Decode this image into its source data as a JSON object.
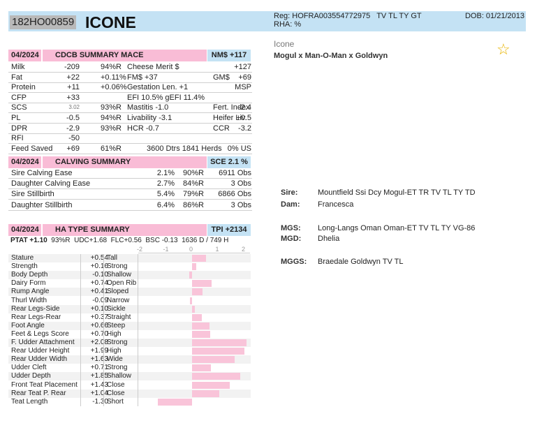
{
  "header": {
    "reg_id": "182HO00859",
    "name": "ICONE",
    "reg": "Reg: HOFRA003554772975",
    "tags": "TV TL TY GT",
    "rha": "RHA: %",
    "dob": "DOB: 01/21/2013"
  },
  "info": {
    "short_name": "Icone",
    "pedigree_line": "Mogul x Man-O-Man x Goldwyn"
  },
  "pedigree": [
    {
      "label": "Sire:",
      "value": "Mountfield Ssi Dcy Mogul-ET TR TV TL TY TD"
    },
    {
      "label": "Dam:",
      "value": "Francesca"
    },
    {
      "label": "MGS:",
      "value": "Long-Langs Oman Oman-ET TV TL TY VG-86"
    },
    {
      "label": "MGD:",
      "value": "Dhelia"
    },
    {
      "label": "MGGS:",
      "value": "Braedale Goldwyn TV TL"
    }
  ],
  "mace": {
    "date": "04/2024",
    "title": "CDCB SUMMARY MACE",
    "index": "NM$ +117",
    "rows": [
      [
        "Milk",
        "-209",
        "94%R",
        "Cheese Merit $",
        "",
        "+127"
      ],
      [
        "Fat",
        "+22",
        "+0.11%",
        "FM$ +37",
        "GM$",
        "+69"
      ],
      [
        "Protein",
        "+11",
        "+0.06%",
        "Gestation Len. +1",
        "",
        "MSP"
      ],
      [
        "CFP",
        "+33",
        "",
        "EFI  10.5%  gEFI  11.4%",
        "",
        ""
      ],
      [
        "SCS",
        "3.02",
        "93%R",
        "Mastitis  -1.0",
        "Fert. Index",
        "-2.4"
      ],
      [
        "PL",
        "-0.5",
        "94%R",
        "Livability  -3.1",
        "Heifer Liv.",
        "+0.5"
      ],
      [
        "DPR",
        "-2.9",
        "93%R",
        "HCR  -0.7",
        "CCR",
        "-3.2"
      ],
      [
        "RFI",
        "-50",
        "",
        "",
        "",
        ""
      ],
      [
        "Feed Saved",
        "+69",
        "61%R",
        "3600 Dtrs  1841 Herds",
        "",
        "0% US"
      ]
    ]
  },
  "calving": {
    "date": "04/2024",
    "title": "CALVING SUMMARY",
    "index": "SCE 2.1 %",
    "rows": [
      [
        "Sire Calving Ease",
        "2.1%",
        "90%R",
        "6911 Obs"
      ],
      [
        "Daughter Calving Ease",
        "2.7%",
        "84%R",
        "3 Obs"
      ],
      [
        "Sire Stillbirth",
        "5.4%",
        "79%R",
        "6866 Obs"
      ],
      [
        "Daughter Stillbirth",
        "6.4%",
        "86%R",
        "3 Obs"
      ]
    ]
  },
  "type": {
    "date": "04/2024",
    "title": "HA TYPE SUMMARY",
    "index": "TPI +2134",
    "ptat": "PTAT +1.10",
    "ptat_rel": "93%R",
    "udc": "UDC+1.68",
    "flc": "FLC+0.56",
    "bsc": "BSC -0.13",
    "daughters": "1636 D /",
    "herds": "749 H",
    "axis": [
      "-2",
      "-1",
      "0",
      "1",
      "2"
    ],
    "traits": [
      {
        "name": "Stature",
        "value": "+0.54",
        "desc": "Tall",
        "v": 0.54
      },
      {
        "name": "Strength",
        "value": "+0.16",
        "desc": "Strong",
        "v": 0.16
      },
      {
        "name": "Body Depth",
        "value": "-0.10",
        "desc": "Shallow",
        "v": -0.1
      },
      {
        "name": "Dairy Form",
        "value": "+0.74",
        "desc": "Open Rib",
        "v": 0.74
      },
      {
        "name": "Rump Angle",
        "value": "+0.41",
        "desc": "Sloped",
        "v": 0.41
      },
      {
        "name": "Thurl Width",
        "value": "-0.09",
        "desc": "Narrow",
        "v": -0.09
      },
      {
        "name": "Rear Legs-Side",
        "value": "+0.10",
        "desc": "Sickle",
        "v": 0.1
      },
      {
        "name": "Rear Legs-Rear",
        "value": "+0.37",
        "desc": "Straight",
        "v": 0.37
      },
      {
        "name": "Foot Angle",
        "value": "+0.66",
        "desc": "Steep",
        "v": 0.66
      },
      {
        "name": "Feet & Legs Score",
        "value": "+0.70",
        "desc": "High",
        "v": 0.7
      },
      {
        "name": "F. Udder Attachment",
        "value": "+2.08",
        "desc": "Strong",
        "v": 2.08
      },
      {
        "name": "Rear Udder Height",
        "value": "+1.99",
        "desc": "High",
        "v": 1.99
      },
      {
        "name": "Rear Udder Width",
        "value": "+1.63",
        "desc": "Wide",
        "v": 1.63
      },
      {
        "name": "Udder Cleft",
        "value": "+0.71",
        "desc": "Strong",
        "v": 0.71
      },
      {
        "name": "Udder Depth",
        "value": "+1.85",
        "desc": "Shallow",
        "v": 1.85
      },
      {
        "name": "Front Teat Placement",
        "value": "+1.43",
        "desc": "Close",
        "v": 1.43
      },
      {
        "name": "Rear Teat P. Rear",
        "value": "+1.04",
        "desc": "Close",
        "v": 1.04
      },
      {
        "name": "Teat Length",
        "value": "-1.30",
        "desc": "Short",
        "v": -1.3
      }
    ]
  },
  "colors": {
    "pink": "#f9bcd6",
    "blue": "#c4e2f4",
    "star": "#e8b400"
  }
}
